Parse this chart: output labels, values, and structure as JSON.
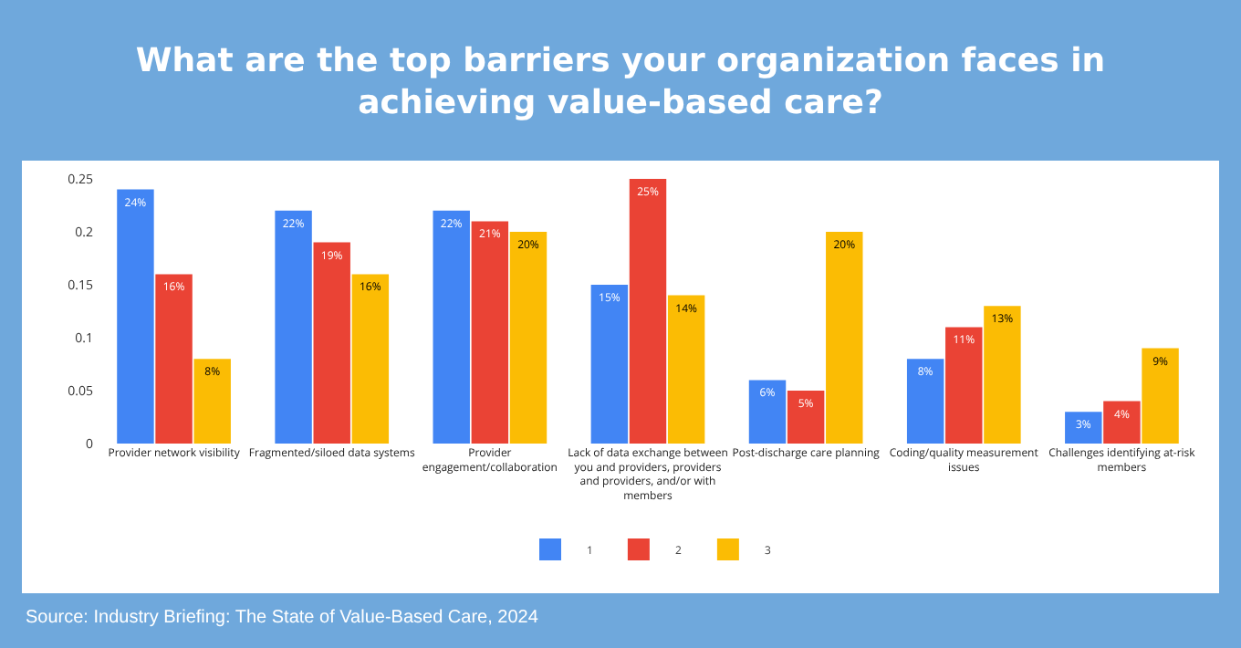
{
  "chart_data": {
    "type": "bar",
    "title": "What are the top barriers your organization faces in achieving value-based care?",
    "categories": [
      "Provider network visibility",
      "Fragmented/siloed data systems",
      "Provider engagement/collaboration",
      "Lack of data exchange between you and providers, providers and providers, and/or with members",
      "Post-discharge care planning",
      "Coding/quality measurement issues",
      "Challenges identifying at-risk members"
    ],
    "series": [
      {
        "name": "1",
        "color": "#4285f4",
        "values": [
          0.24,
          0.22,
          0.22,
          0.15,
          0.06,
          0.08,
          0.03
        ],
        "value_labels": [
          "24%",
          "22%",
          "22%",
          "15%",
          "6%",
          "8%",
          "3%"
        ]
      },
      {
        "name": "2",
        "color": "#ea4335",
        "values": [
          0.16,
          0.19,
          0.21,
          0.25,
          0.05,
          0.11,
          0.04
        ],
        "value_labels": [
          "16%",
          "19%",
          "21%",
          "25%",
          "5%",
          "11%",
          "4%"
        ]
      },
      {
        "name": "3",
        "color": "#fbbc04",
        "values": [
          0.08,
          0.16,
          0.2,
          0.14,
          0.2,
          0.13,
          0.09
        ],
        "value_labels": [
          "8%",
          "16%",
          "20%",
          "14%",
          "20%",
          "13%",
          "9%"
        ]
      }
    ],
    "ylim": [
      0,
      0.25
    ],
    "yticks": [
      0,
      0.05,
      0.1,
      0.15,
      0.2,
      0.25
    ],
    "grid": false,
    "legend": "bottom",
    "annotations": [
      "Source: Industry Briefing: The State of Value-Based Care, 2024"
    ]
  }
}
